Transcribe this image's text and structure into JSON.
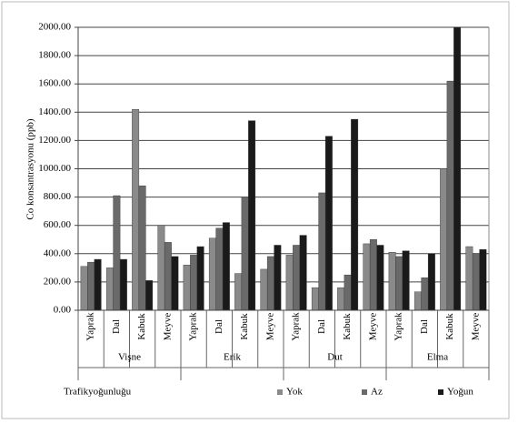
{
  "chart_data": {
    "type": "bar",
    "y_label": "Co konsantrasyonu (ppb)",
    "legend_title": "Trafikyoğunluğu",
    "categories": [
      "Yaprak",
      "Dal",
      "Kabuk",
      "Meyve",
      "Yaprak",
      "Dal",
      "Kabuk",
      "Meyve",
      "Yaprak",
      "Dal",
      "Kabuk",
      "Meyve",
      "Yaprak",
      "Dal",
      "Kabuk",
      "Meyve"
    ],
    "category_groups": [
      "Vişne",
      "Erik",
      "Dut",
      "Elma"
    ],
    "series": [
      {
        "name": "Yok",
        "color": "#8a8a8a",
        "values": [
          310,
          300,
          1420,
          600,
          320,
          510,
          260,
          290,
          390,
          160,
          160,
          470,
          410,
          130,
          1000,
          450
        ]
      },
      {
        "name": "Az",
        "color": "#6a6a6a",
        "values": [
          340,
          810,
          880,
          480,
          390,
          580,
          800,
          380,
          460,
          830,
          250,
          500,
          380,
          230,
          1620,
          400
        ]
      },
      {
        "name": "Yoğun",
        "color": "#1a1a1a",
        "values": [
          360,
          360,
          210,
          380,
          450,
          620,
          1340,
          460,
          530,
          1230,
          1350,
          460,
          420,
          400,
          2000,
          430
        ]
      }
    ],
    "ylim": [
      0,
      2000
    ],
    "yticks": [
      {
        "value": 0,
        "label": "0.00"
      },
      {
        "value": 200,
        "label": "200.00"
      },
      {
        "value": 400,
        "label": "400.00"
      },
      {
        "value": 600,
        "label": "600.00"
      },
      {
        "value": 800,
        "label": "800.00"
      },
      {
        "value": 1000,
        "label": "1000.00"
      },
      {
        "value": 1200,
        "label": "1200.00"
      },
      {
        "value": 1400,
        "label": "1400.00"
      },
      {
        "value": 1600,
        "label": "1600.00"
      },
      {
        "value": 1800,
        "label": "1800.00"
      },
      {
        "value": 2000,
        "label": "2000.00"
      }
    ],
    "grid": true
  }
}
